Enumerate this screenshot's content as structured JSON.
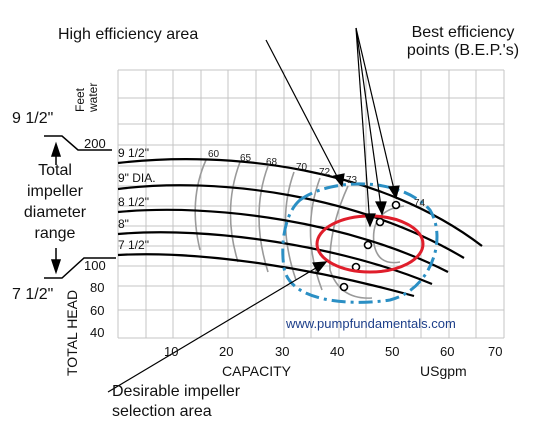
{
  "annotations": {
    "high_efficiency": "High efficiency area",
    "best_efficiency_line1": "Best efficiency",
    "best_efficiency_line2": "points (B.E.P.'s)",
    "total_range_line1": "Total",
    "total_range_line2": "impeller",
    "total_range_line3": "diameter",
    "total_range_line4": "range",
    "range_top": "9 1/2\"",
    "range_bottom": "7 1/2\"",
    "desirable_line1": "Desirable impeller",
    "desirable_line2": "selection area"
  },
  "axes": {
    "y_unit_line1": "Feet",
    "y_unit_line2": "water",
    "y_label": "TOTAL HEAD",
    "x_label": "CAPACITY",
    "x_unit": "USgpm",
    "y_ticks": [
      "200",
      "100",
      "80",
      "60",
      "40"
    ],
    "x_ticks": [
      "10",
      "20",
      "30",
      "40",
      "50",
      "60",
      "70"
    ]
  },
  "impellers": [
    "9 1/2\"",
    "9\" DIA.",
    "8 1/2\"",
    "8\"",
    "7 1/2\""
  ],
  "efficiency_labels": [
    "60",
    "65",
    "68",
    "70",
    "72",
    "73",
    "74"
  ],
  "watermark": "www.pumpfundamentals.com",
  "colors": {
    "curve": "#000000",
    "iso_efficiency": "#9a9a9a",
    "grid": "#c4c4c4",
    "high_efficiency_outline": "#2b8fc4",
    "desirable_outline": "#e01e2b",
    "watermark": "#1d3f8a"
  }
}
